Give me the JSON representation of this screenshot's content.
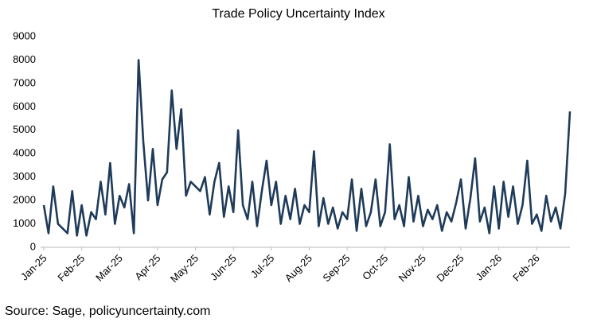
{
  "chart_data": {
    "type": "line",
    "title": "Trade Policy Uncertainty Index",
    "source": "Source: Sage, policyuncertainty.com",
    "categories": [
      "Jan-25",
      null,
      null,
      null,
      null,
      null,
      null,
      null,
      "Feb-25",
      null,
      null,
      null,
      null,
      null,
      null,
      null,
      "Mar-25",
      null,
      null,
      null,
      null,
      null,
      null,
      null,
      "Apr-25",
      null,
      null,
      null,
      null,
      null,
      null,
      null,
      "May-25",
      null,
      null,
      null,
      null,
      null,
      null,
      null,
      "Jun-25",
      null,
      null,
      null,
      null,
      null,
      null,
      null,
      "Jul-25",
      null,
      null,
      null,
      null,
      null,
      null,
      null,
      "Aug-25",
      null,
      null,
      null,
      null,
      null,
      null,
      null,
      "Sep-25",
      null,
      null,
      null,
      null,
      null,
      null,
      null,
      "Oct-25",
      null,
      null,
      null,
      null,
      null,
      null,
      null,
      "Nov-25",
      null,
      null,
      null,
      null,
      null,
      null,
      null,
      "Dec-25",
      null,
      null,
      null,
      null,
      null,
      null,
      null,
      "Jan-26",
      null,
      null,
      null,
      null,
      null,
      null,
      null,
      "Feb-26",
      null,
      null,
      null,
      null,
      null,
      null,
      null
    ],
    "series": [
      {
        "name": "Trade Policy Uncertainty Index",
        "color": "#1f3b5a",
        "values": [
          1800,
          600,
          2600,
          1000,
          800,
          600,
          2400,
          500,
          1800,
          500,
          1500,
          1200,
          2800,
          1400,
          3600,
          1000,
          2200,
          1700,
          2700,
          600,
          8000,
          4500,
          2000,
          4200,
          1800,
          2900,
          3200,
          6700,
          4200,
          5900,
          2200,
          2800,
          2600,
          2400,
          3000,
          1400,
          2800,
          3600,
          1300,
          2600,
          1500,
          5000,
          1800,
          1200,
          2800,
          900,
          2400,
          3700,
          1800,
          2800,
          1000,
          2200,
          1200,
          2500,
          1000,
          1800,
          1500,
          4100,
          900,
          2100,
          1000,
          1700,
          800,
          1500,
          1200,
          2900,
          700,
          2500,
          900,
          1500,
          2900,
          900,
          1500,
          4400,
          1200,
          1800,
          900,
          3000,
          1100,
          2200,
          900,
          1600,
          1200,
          1800,
          700,
          1500,
          1100,
          1900,
          2900,
          800,
          2100,
          3800,
          1100,
          1700,
          600,
          2600,
          800,
          2800,
          1300,
          2600,
          1000,
          1800,
          3700,
          1000,
          1400,
          700,
          2200,
          1100,
          1700,
          800,
          2300,
          5800
        ]
      }
    ],
    "ylim": [
      0,
      9000
    ],
    "yticks": [
      0,
      1000,
      2000,
      3000,
      4000,
      5000,
      6000,
      7000,
      8000,
      9000
    ],
    "grid": false
  }
}
